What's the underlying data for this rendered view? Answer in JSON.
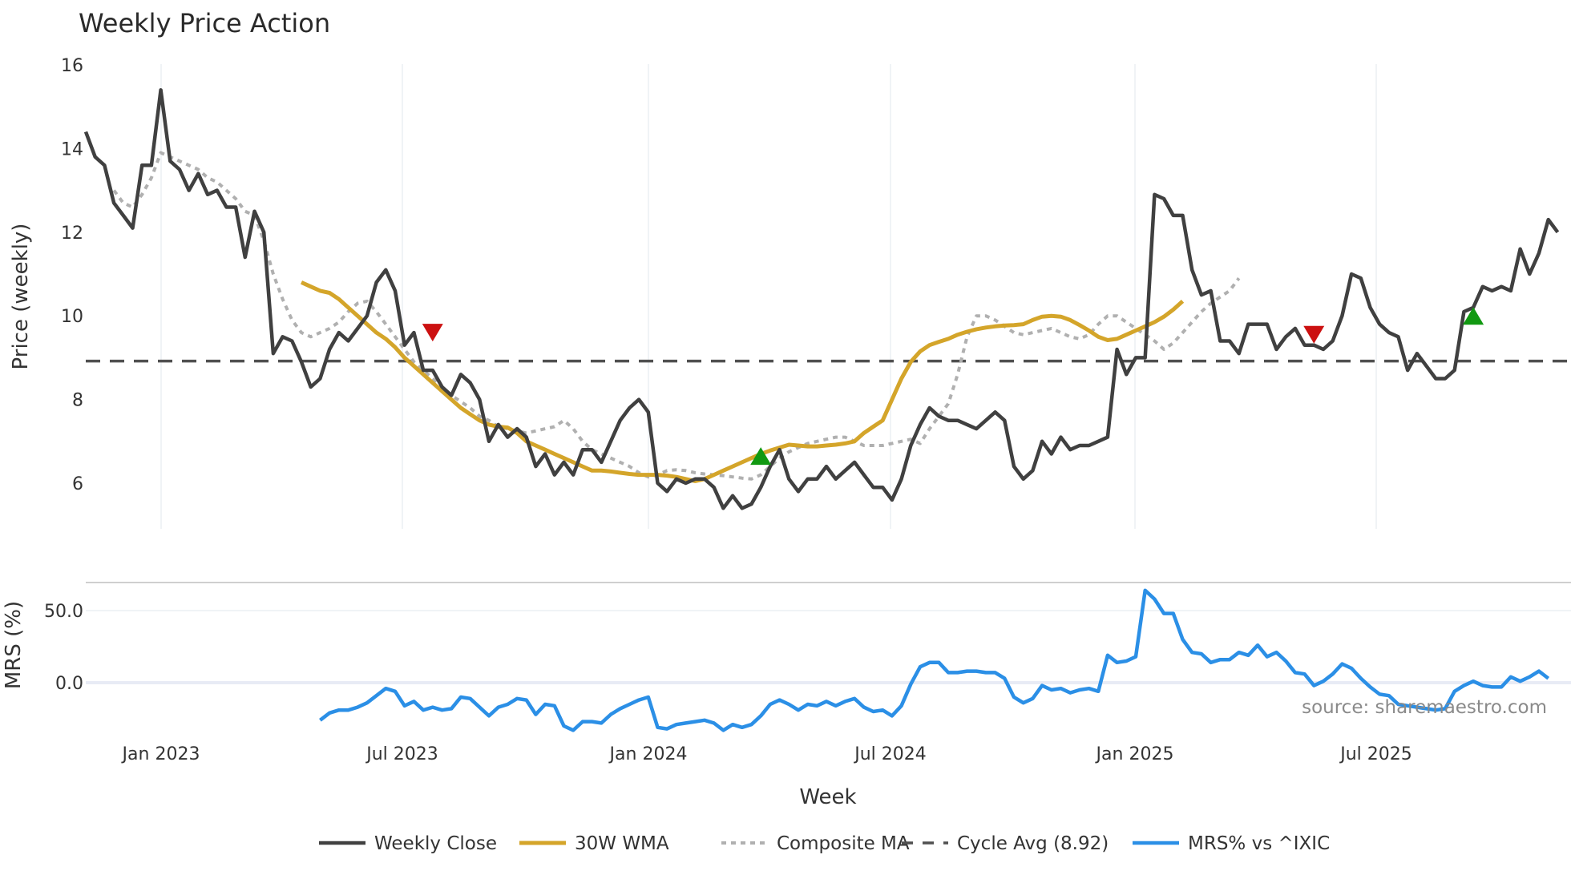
{
  "chart_data": {
    "type": "line",
    "title": "Weekly Price Action",
    "xlabel": "Week",
    "panels": [
      {
        "name": "price",
        "ylabel": "Price (weekly)",
        "ylim": [
          4.8,
          16.2
        ],
        "yticks": [
          6,
          8,
          10,
          12,
          14,
          16
        ]
      },
      {
        "name": "mrs",
        "ylabel": "MRS (%)",
        "ylim": [
          -40,
          75
        ],
        "yticks": [
          0.0,
          50.0
        ],
        "ytick_labels": [
          "0.0",
          "50.0"
        ]
      }
    ],
    "x_ticks": [
      "Jan 2023",
      "Jul 2023",
      "Jan 2024",
      "Jul 2024",
      "Jan 2025",
      "Jul 2025"
    ],
    "x_start": "2022-11-07",
    "x_step": "1 week",
    "series": [
      {
        "name": "Weekly Close",
        "panel": "price",
        "color": "#404040",
        "style": "solid",
        "start_index": 0,
        "values": [
          14.4,
          13.8,
          13.6,
          12.7,
          12.4,
          12.1,
          13.6,
          13.6,
          15.4,
          13.7,
          13.5,
          13.0,
          13.4,
          12.9,
          13.0,
          12.6,
          12.6,
          11.4,
          12.5,
          12.0,
          9.1,
          9.5,
          9.4,
          8.9,
          8.3,
          8.5,
          9.2,
          9.6,
          9.4,
          9.7,
          10.0,
          10.8,
          11.1,
          10.6,
          9.3,
          9.6,
          8.7,
          8.7,
          8.3,
          8.1,
          8.6,
          8.4,
          8.0,
          7.0,
          7.4,
          7.1,
          7.3,
          7.1,
          6.4,
          6.7,
          6.2,
          6.5,
          6.2,
          6.8,
          6.8,
          6.5,
          7.0,
          7.5,
          7.8,
          8.0,
          7.7,
          6.0,
          5.8,
          6.1,
          6.0,
          6.1,
          6.1,
          5.9,
          5.4,
          5.7,
          5.4,
          5.5,
          5.9,
          6.4,
          6.8,
          6.1,
          5.8,
          6.1,
          6.1,
          6.4,
          6.1,
          6.3,
          6.5,
          6.2,
          5.9,
          5.9,
          5.6,
          6.1,
          6.9,
          7.4,
          7.8,
          7.6,
          7.5,
          7.5,
          7.4,
          7.3,
          7.5,
          7.7,
          7.5,
          6.4,
          6.1,
          6.3,
          7.0,
          6.7,
          7.1,
          6.8,
          6.9,
          6.9,
          7.0,
          7.1,
          9.2,
          8.6,
          9.0,
          9.0,
          12.9,
          12.8,
          12.4,
          12.4,
          11.1,
          10.5,
          10.6,
          9.4,
          9.4,
          9.1,
          9.8,
          9.8,
          9.8,
          9.2,
          9.5,
          9.7,
          9.3,
          9.3,
          9.2,
          9.4,
          10.0,
          11.0,
          10.9,
          10.2,
          9.8,
          9.6,
          9.5,
          8.7,
          9.1,
          8.8,
          8.5,
          8.5,
          8.7,
          10.1,
          10.2,
          10.7,
          10.6,
          10.7,
          10.6,
          11.6,
          11.0,
          11.5,
          12.3,
          12.0
        ]
      },
      {
        "name": "30W WMA",
        "panel": "price",
        "color": "#d4a52a",
        "style": "solid",
        "start_index": 23,
        "values": [
          10.8,
          10.7,
          10.6,
          10.55,
          10.4,
          10.2,
          10.0,
          9.8,
          9.6,
          9.45,
          9.25,
          9.0,
          8.8,
          8.6,
          8.4,
          8.2,
          8.0,
          7.8,
          7.65,
          7.5,
          7.4,
          7.35,
          7.33,
          7.2,
          7.0,
          6.9,
          6.8,
          6.7,
          6.6,
          6.5,
          6.4,
          6.3,
          6.3,
          6.28,
          6.25,
          6.22,
          6.2,
          6.2,
          6.2,
          6.18,
          6.15,
          6.1,
          6.05,
          6.1,
          6.2,
          6.3,
          6.4,
          6.5,
          6.6,
          6.7,
          6.78,
          6.85,
          6.92,
          6.9,
          6.88,
          6.88,
          6.9,
          6.92,
          6.95,
          7.0,
          7.2,
          7.35,
          7.5,
          8.0,
          8.5,
          8.9,
          9.15,
          9.3,
          9.38,
          9.45,
          9.55,
          9.62,
          9.68,
          9.72,
          9.75,
          9.77,
          9.78,
          9.8,
          9.9,
          9.98,
          10.0,
          9.98,
          9.9,
          9.78,
          9.65,
          9.5,
          9.42,
          9.45,
          9.55,
          9.65,
          9.75,
          9.85,
          9.98,
          10.15,
          10.35
        ]
      },
      {
        "name": "Composite MA",
        "panel": "price",
        "color": "#b0b0b0",
        "style": "dotted",
        "start_index": 3,
        "values": [
          13.0,
          12.7,
          12.6,
          12.9,
          13.3,
          13.9,
          13.8,
          13.7,
          13.6,
          13.5,
          13.3,
          13.2,
          13.0,
          12.8,
          12.5,
          12.4,
          11.8,
          11.0,
          10.4,
          9.9,
          9.6,
          9.5,
          9.6,
          9.7,
          9.85,
          10.1,
          10.3,
          10.35,
          10.1,
          9.8,
          9.5,
          9.2,
          8.9,
          8.7,
          8.5,
          8.3,
          8.1,
          7.95,
          7.8,
          7.6,
          7.5,
          7.35,
          7.3,
          7.25,
          7.2,
          7.25,
          7.3,
          7.35,
          7.5,
          7.3,
          7.0,
          6.8,
          6.7,
          6.6,
          6.5,
          6.4,
          6.25,
          6.15,
          6.2,
          6.3,
          6.32,
          6.3,
          6.25,
          6.22,
          6.2,
          6.18,
          6.15,
          6.12,
          6.1,
          6.2,
          6.4,
          6.6,
          6.75,
          6.85,
          6.95,
          7.0,
          7.05,
          7.1,
          7.1,
          7.0,
          6.9,
          6.9,
          6.9,
          6.95,
          7.0,
          7.05,
          6.95,
          7.3,
          7.6,
          7.9,
          8.6,
          9.5,
          10.0,
          10.0,
          9.9,
          9.75,
          9.6,
          9.55,
          9.6,
          9.65,
          9.7,
          9.6,
          9.5,
          9.45,
          9.55,
          9.8,
          10.0,
          10.0,
          9.85,
          9.7,
          9.55,
          9.4,
          9.2,
          9.35,
          9.6,
          9.85,
          10.1,
          10.3,
          10.45,
          10.6,
          10.9
        ]
      },
      {
        "name": "Cycle Avg (8.92)",
        "panel": "price",
        "color": "#505050",
        "style": "dashed",
        "constant": 8.92
      },
      {
        "name": "MRS% vs ^IXIC",
        "panel": "mrs",
        "color": "#2b8fe6",
        "style": "solid",
        "start_index": 25,
        "values": [
          -26,
          -21,
          -19,
          -19,
          -17,
          -14,
          -9,
          -4,
          -6,
          -16,
          -13,
          -19,
          -17,
          -19,
          -18,
          -10,
          -11,
          -17,
          -23,
          -17,
          -15,
          -11,
          -12,
          -22,
          -15,
          -16,
          -30,
          -33,
          -27,
          -27,
          -28,
          -22,
          -18,
          -15,
          -12,
          -10,
          -31,
          -32,
          -29,
          -28,
          -27,
          -26,
          -28,
          -33,
          -29,
          -31,
          -29,
          -23,
          -15,
          -12,
          -15,
          -19,
          -15,
          -16,
          -13,
          -16,
          -13,
          -11,
          -17,
          -20,
          -19,
          -23,
          -16,
          -1,
          11,
          14,
          14,
          7,
          7,
          8,
          8,
          7,
          7,
          3,
          -10,
          -14,
          -11,
          -2,
          -5,
          -4,
          -7,
          -5,
          -4,
          -6,
          19,
          14,
          15,
          18,
          64,
          58,
          48,
          48,
          30,
          21,
          20,
          14,
          16,
          16,
          21,
          19,
          26,
          18,
          21,
          15,
          7,
          6,
          -2,
          1,
          6,
          13,
          10,
          3,
          -3,
          -8,
          -9,
          -15,
          -16,
          -17,
          -18,
          -19,
          -18,
          -6,
          -2,
          1,
          -2,
          -3,
          -3,
          4,
          1,
          4,
          8,
          3
        ]
      }
    ],
    "annotations": {
      "sell_markers": [
        {
          "index": 37,
          "value": 9.6,
          "color": "#cc1111",
          "shape": "triangle-down"
        },
        {
          "index": 131,
          "value": 9.55,
          "color": "#cc1111",
          "shape": "triangle-down"
        }
      ],
      "buy_markers": [
        {
          "index": 72,
          "value": 6.65,
          "color": "#119911",
          "shape": "triangle-up"
        },
        {
          "index": 148,
          "value": 10.0,
          "color": "#119911",
          "shape": "triangle-up"
        }
      ],
      "source": "source: sharemaestro.com"
    },
    "legend": {
      "position": "bottom",
      "entries": [
        "Weekly Close",
        "30W WMA",
        "Composite MA",
        "Cycle Avg (8.92)",
        "MRS% vs ^IXIC"
      ]
    },
    "grid": {
      "x": true,
      "y_price": false,
      "y_mrs": true
    }
  }
}
